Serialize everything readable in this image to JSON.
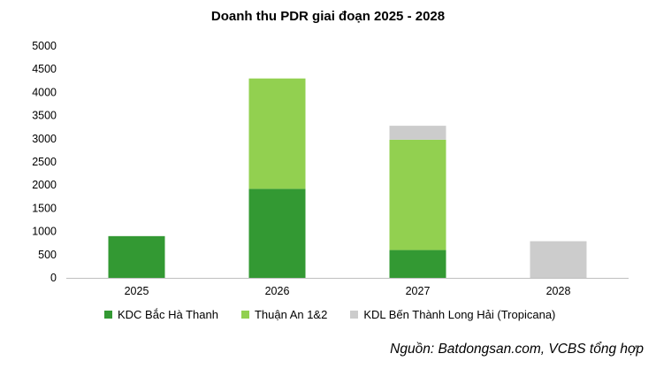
{
  "chart_data": {
    "type": "bar",
    "stacked": true,
    "title": "Doanh thu PDR giai đoạn 2025 - 2028",
    "categories": [
      "2025",
      "2026",
      "2027",
      "2028"
    ],
    "series": [
      {
        "name": "KDC Bắc Hà Thanh",
        "values": [
          900,
          1920,
          600,
          0
        ],
        "color": "#339933"
      },
      {
        "name": "Thuận An 1&2",
        "values": [
          0,
          2380,
          2380,
          0
        ],
        "color": "#92d050"
      },
      {
        "name": "KDL Bến Thành Long Hải (Tropicana)",
        "values": [
          0,
          0,
          300,
          790
        ],
        "color": "#cccccc"
      }
    ],
    "ylim": [
      0,
      5000
    ],
    "yticks": [
      "0",
      "500",
      "1000",
      "1500",
      "2000",
      "2500",
      "3000",
      "3500",
      "4000",
      "4500",
      "5000"
    ],
    "grid": false,
    "legend_position": "bottom"
  },
  "source_note": "Nguồn: Batdongsan.com, VCBS tổng hợp"
}
